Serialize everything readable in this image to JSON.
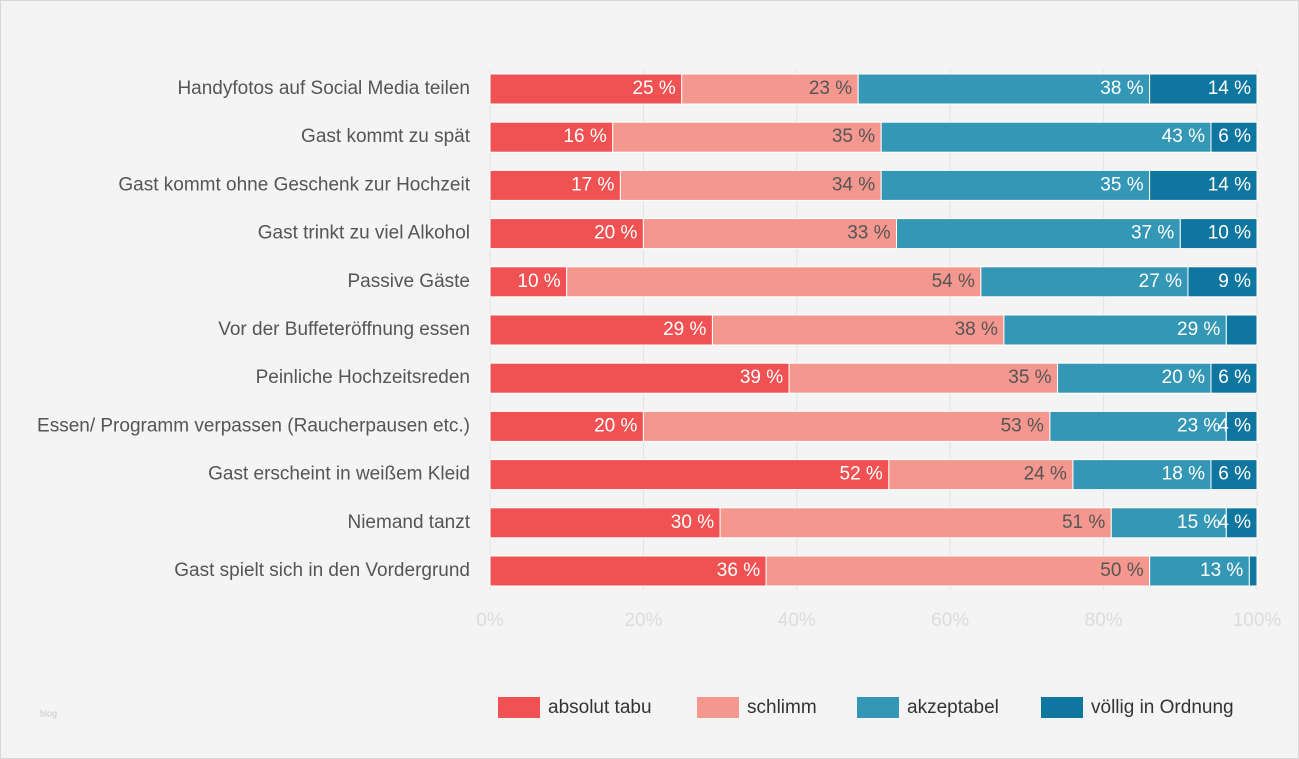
{
  "chart_data": {
    "type": "stacked-barh",
    "categories": [
      "Handyfotos auf Social Media teilen",
      "Gast kommt zu spät",
      "Gast kommt ohne Geschenk zur Hochzeit",
      "Gast trinkt zu viel Alkohol",
      "Passive Gäste",
      "Vor der Buffeteröffnung essen",
      "Peinliche Hochzeitsreden",
      "Essen/ Programm verpassen (Raucherpausen etc.)",
      "Gast erscheint in weißem Kleid",
      "Niemand tanzt",
      "Gast spielt sich in den Vordergrund"
    ],
    "series": [
      {
        "name": "absolut tabu",
        "color": "#f05152",
        "values": [
          25,
          16,
          17,
          20,
          10,
          29,
          39,
          20,
          52,
          30,
          36
        ],
        "value_labels": [
          "25 %",
          "16 %",
          "17 %",
          "20 %",
          "10 %",
          "29 %",
          "39 %",
          "20 %",
          "52 %",
          "30 %",
          "36 %"
        ]
      },
      {
        "name": "schlimm",
        "color": "#f4978e",
        "values": [
          23,
          35,
          34,
          33,
          54,
          38,
          35,
          53,
          24,
          51,
          50
        ],
        "value_labels": [
          "23 %",
          "35 %",
          "34 %",
          "33 %",
          "54 %",
          "38 %",
          "35 %",
          "53 %",
          "24 %",
          "51 %",
          "50 %"
        ]
      },
      {
        "name": "akzeptabel",
        "color": "#3597b6",
        "values": [
          38,
          43,
          35,
          37,
          27,
          29,
          20,
          23,
          18,
          15,
          13
        ],
        "value_labels": [
          "38 %",
          "43 %",
          "35 %",
          "37 %",
          "27 %",
          "29 %",
          "20 %",
          "23 %",
          "18 %",
          "15 %",
          "13 %"
        ]
      },
      {
        "name": "völlig in Ordnung",
        "color": "#0f76a0",
        "values": [
          14,
          6,
          14,
          10,
          9,
          4,
          6,
          4,
          6,
          4,
          1
        ],
        "value_labels": [
          "14 %",
          "6 %",
          "14 %",
          "10 %",
          "9 %",
          null,
          "6 %",
          "4 %",
          "6 %",
          "4 %",
          null
        ]
      }
    ],
    "xlim": [
      0,
      100
    ],
    "xticks": [
      {
        "value": 0,
        "label": "0%"
      },
      {
        "value": 20,
        "label": "20%"
      },
      {
        "value": 40,
        "label": "40%"
      },
      {
        "value": 60,
        "label": "60%"
      },
      {
        "value": 80,
        "label": "80%"
      },
      {
        "value": 100,
        "label": "100%"
      }
    ],
    "grid": true,
    "legend": "bottom",
    "watermark": "blog"
  }
}
